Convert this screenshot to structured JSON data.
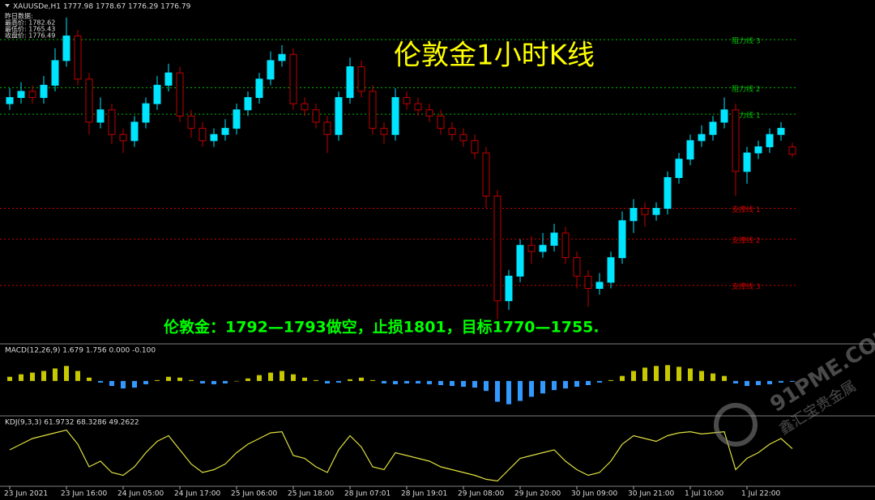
{
  "chart_data": [
    {
      "type": "candlestick",
      "title": "伦敦金1小时K线",
      "header": "XAUUSDe,H1  1777.98 1778.67 1776.29 1776.79",
      "info": [
        "昨日数据:",
        "最高价: 1782.62",
        "最低价: 1765.43",
        "收盘价: 1776.49"
      ],
      "annotation": "伦敦金：1792—1793做空，止损1801，目标1770—1755.",
      "watermark": [
        "91PME.COM",
        "鑫汇宝贵金属"
      ],
      "categories": [
        "23 Jun 2021",
        null,
        null,
        null,
        null,
        "23 Jun 16:00",
        null,
        null,
        null,
        null,
        "24 Jun 05:00",
        null,
        null,
        null,
        null,
        "24 Jun 17:00",
        null,
        null,
        null,
        null,
        "25 Jun 06:00",
        null,
        null,
        null,
        null,
        "25 Jun 18:00",
        null,
        null,
        null,
        null,
        "28 Jun 07:01",
        null,
        null,
        null,
        null,
        "28 Jun 19:01",
        null,
        null,
        null,
        null,
        "29 Jun 08:00",
        null,
        null,
        null,
        null,
        "29 Jun 20:00",
        null,
        null,
        null,
        null,
        "30 Jun 09:00",
        null,
        null,
        null,
        null,
        "30 Jun 21:00",
        null,
        null,
        null,
        null,
        "1 Jul 10:00",
        null,
        null,
        null,
        null,
        "1 Jul 22:00",
        null,
        null,
        null,
        null
      ],
      "open": [
        1785,
        1786,
        1787,
        1786,
        1788,
        1792,
        1796,
        1789,
        1782,
        1784,
        1780,
        1779,
        1782,
        1785,
        1788,
        1790,
        1783,
        1781,
        1779,
        1780,
        1781,
        1784,
        1786,
        1789,
        1792,
        1793,
        1785,
        1784,
        1782,
        1780,
        1786,
        1791,
        1787,
        1781,
        1780,
        1786,
        1785,
        1784,
        1783,
        1781,
        1780,
        1779,
        1777,
        1770,
        1753,
        1757,
        1762,
        1761,
        1762,
        1764,
        1760,
        1757,
        1755,
        1756,
        1760,
        1766,
        1768,
        1767,
        1768,
        1773,
        1776,
        1779,
        1780,
        1782,
        1784,
        1774,
        1777,
        1778,
        1780,
        1777.98
      ],
      "high": [
        1787.5,
        1788.5,
        1788,
        1789.5,
        1794,
        1799,
        1797,
        1790,
        1786,
        1785,
        1781,
        1783,
        1786,
        1789.5,
        1791.5,
        1791,
        1784,
        1782,
        1781,
        1782.5,
        1785,
        1787,
        1790,
        1793.5,
        1794.5,
        1794,
        1786,
        1785,
        1783,
        1787,
        1792.5,
        1792,
        1788,
        1782,
        1787.5,
        1787,
        1786,
        1785,
        1784,
        1782,
        1781,
        1780,
        1778,
        1771,
        1758,
        1763,
        1763.5,
        1764,
        1765.5,
        1765,
        1761,
        1758,
        1757.5,
        1761,
        1767.5,
        1769.5,
        1769,
        1769,
        1774,
        1777,
        1780,
        1781.5,
        1783,
        1786,
        1785,
        1778,
        1779,
        1781,
        1782,
        1778.67
      ],
      "low": [
        1784,
        1785,
        1785,
        1785,
        1787,
        1791,
        1788,
        1780,
        1781,
        1778.5,
        1777,
        1778,
        1781,
        1784,
        1787,
        1782,
        1779.5,
        1778,
        1778,
        1779,
        1780,
        1783,
        1785,
        1788,
        1791,
        1784,
        1783,
        1781,
        1777,
        1779,
        1785,
        1786,
        1780,
        1778.5,
        1779,
        1784,
        1783,
        1782,
        1780,
        1779,
        1778,
        1776,
        1768,
        1750,
        1751.5,
        1756,
        1759,
        1760,
        1761,
        1759,
        1755,
        1752,
        1754,
        1755,
        1759,
        1764,
        1765,
        1766,
        1767,
        1772,
        1775,
        1778,
        1779,
        1781,
        1770,
        1772,
        1776,
        1777,
        1779,
        1776.29
      ],
      "close": [
        1786,
        1787,
        1786,
        1788,
        1792,
        1796,
        1789,
        1782,
        1784,
        1780,
        1779,
        1782,
        1785,
        1788,
        1790,
        1783,
        1781,
        1779,
        1780,
        1781,
        1784,
        1786,
        1789,
        1792,
        1793,
        1785,
        1784,
        1782,
        1780,
        1786,
        1791,
        1787,
        1781,
        1780,
        1786,
        1785,
        1784,
        1783,
        1781,
        1780,
        1779,
        1777,
        1770,
        1753,
        1757,
        1762,
        1761,
        1762,
        1764,
        1760,
        1757,
        1755,
        1756,
        1760,
        1766,
        1768,
        1767,
        1768,
        1773,
        1776,
        1779,
        1780,
        1782,
        1784,
        1774,
        1777,
        1778,
        1780,
        1781,
        1776.79
      ],
      "up_color": "#00e5ff",
      "down_color": "#c00000",
      "levels": [
        {
          "label": "阻力线 3",
          "value": 1795.4,
          "color": "#00c000"
        },
        {
          "label": "阻力线 2",
          "value": 1787.6,
          "color": "#00c000"
        },
        {
          "label": "阻力线 1",
          "value": 1783.3,
          "color": "#00c000"
        },
        {
          "label": "支撑线 1",
          "value": 1768,
          "color": "#d00000"
        },
        {
          "label": "支撑线 2",
          "value": 1763,
          "color": "#d00000"
        },
        {
          "label": "支撑线 3",
          "value": 1755.5,
          "color": "#d00000"
        }
      ],
      "ylim": [
        1746,
        1800
      ]
    },
    {
      "type": "bar",
      "header": "MACD(12,26,9) 1.679 1.756 0.000 -0.100",
      "values": [
        0.5,
        0.8,
        1.0,
        1.2,
        1.5,
        1.8,
        1.2,
        0.4,
        -0.2,
        -0.6,
        -0.9,
        -0.8,
        -0.4,
        0.1,
        0.5,
        0.4,
        0.1,
        -0.3,
        -0.4,
        -0.3,
        0.0,
        0.3,
        0.7,
        1.0,
        1.2,
        0.8,
        0.4,
        0.1,
        -0.3,
        -0.2,
        0.2,
        0.4,
        0.1,
        -0.3,
        -0.4,
        -0.3,
        -0.3,
        -0.4,
        -0.5,
        -0.6,
        -0.7,
        -0.8,
        -1.2,
        -2.5,
        -2.8,
        -2.4,
        -1.9,
        -1.5,
        -1.1,
        -0.9,
        -0.7,
        -0.5,
        -0.2,
        0.1,
        0.6,
        1.2,
        1.6,
        1.8,
        1.9,
        1.7,
        1.5,
        1.2,
        0.9,
        0.6,
        -0.3,
        -0.6,
        -0.5,
        -0.4,
        -0.2,
        -0.1
      ],
      "pos_color": "#c8c800",
      "neg_color": "#3399ff",
      "ylim": [
        -4,
        3
      ]
    },
    {
      "type": "line",
      "header": "KDJ(9,3,3) 61.9732 68.3286 49.2622",
      "values": [
        60,
        70,
        80,
        85,
        90,
        95,
        70,
        30,
        40,
        20,
        15,
        30,
        55,
        75,
        85,
        60,
        35,
        20,
        25,
        35,
        55,
        70,
        80,
        90,
        92,
        50,
        45,
        30,
        20,
        60,
        85,
        65,
        30,
        25,
        55,
        50,
        45,
        40,
        30,
        25,
        20,
        15,
        8,
        5,
        25,
        45,
        50,
        55,
        60,
        40,
        25,
        15,
        20,
        40,
        70,
        85,
        80,
        75,
        85,
        90,
        92,
        88,
        90,
        92,
        25,
        45,
        55,
        70,
        80,
        62
      ],
      "color": "#e0e040",
      "ylim": [
        0,
        100
      ]
    }
  ]
}
